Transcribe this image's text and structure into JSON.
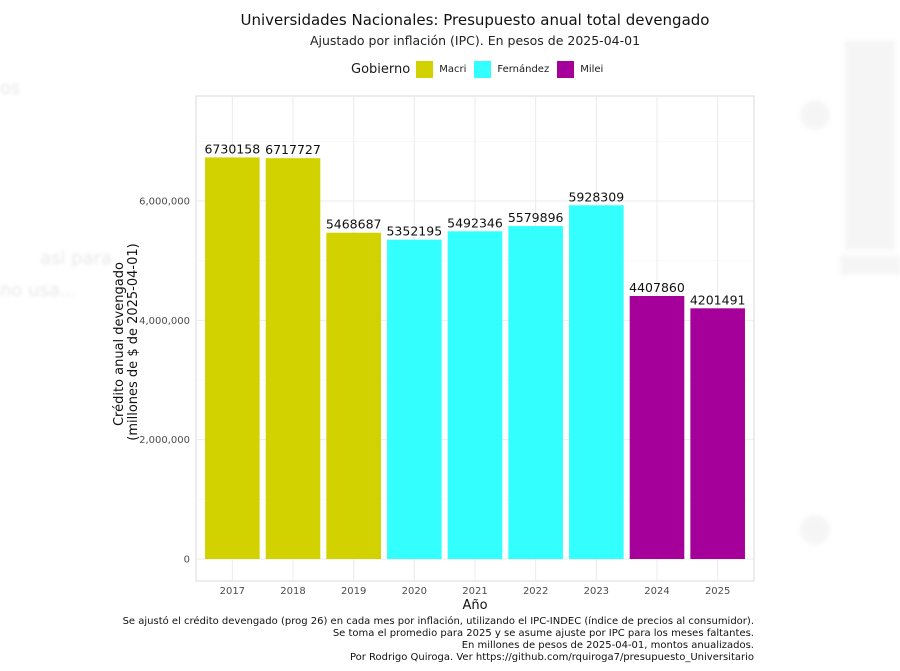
{
  "legend": {
    "title": "Gobierno",
    "items": [
      {
        "label": "Macri",
        "color": "#d2d200"
      },
      {
        "label": "Fernández",
        "color": "#33ffff"
      },
      {
        "label": "Milei",
        "color": "#a6009a"
      }
    ]
  },
  "caption": {
    "lines": [
      "Se ajustó el crédito devengado (prog 26) en cada mes por inflación, utilizando el IPC-INDEC (índice de precios al consumidor).",
      "Se toma el promedio para 2025 y se asume ajuste por IPC para los meses faltantes.",
      "En millones de pesos de 2025-04-01, montos anualizados.",
      "Por Rodrigo Quiroga. Ver https://github.com/rquiroga7/presupuesto_Universitario"
    ]
  },
  "chart_data": {
    "type": "bar",
    "title": "Universidades Nacionales: Presupuesto anual total devengado",
    "subtitle": "Ajustado por inflación (IPC). En pesos de 2025-04-01",
    "xlabel": "Año",
    "ylabel_lines": [
      "Crédito anual devengado",
      "(millones de $ de 2025-04-01)"
    ],
    "ylim": [
      0,
      7800000
    ],
    "yticks": [
      0,
      2000000,
      4000000,
      6000000
    ],
    "ytick_labels": [
      "0",
      "2,000,000",
      "4,000,000",
      "6,000,000"
    ],
    "grid": true,
    "legend_position": "top",
    "categories": [
      "2017",
      "2018",
      "2019",
      "2020",
      "2021",
      "2022",
      "2023",
      "2024",
      "2025"
    ],
    "values": [
      6730158,
      6717727,
      5468687,
      5352195,
      5492346,
      5579896,
      5928309,
      4407860,
      4201491
    ],
    "labels": [
      "6730158",
      "6717727",
      "5468687",
      "5352195",
      "5492346",
      "5579896",
      "5928309",
      "4407860",
      "4201491"
    ],
    "groups": [
      "Macri",
      "Macri",
      "Macri",
      "Fernández",
      "Fernández",
      "Fernández",
      "Fernández",
      "Milei",
      "Milei"
    ]
  }
}
